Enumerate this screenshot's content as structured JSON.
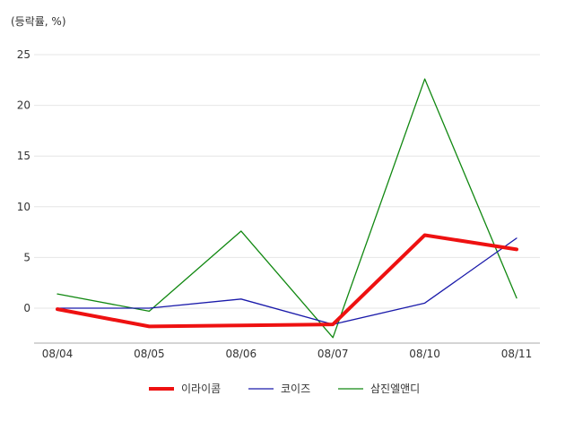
{
  "chart_data": {
    "type": "line",
    "ylabel": "(등락률, %)",
    "categories": [
      "08/04",
      "08/05",
      "08/06",
      "08/07",
      "08/10",
      "08/11"
    ],
    "yticks": [
      25,
      20,
      15,
      10,
      5,
      0
    ],
    "ylim": [
      -3.5,
      25
    ],
    "grid": true,
    "legend_position": "bottom",
    "series": [
      {
        "name": "이라이콤",
        "color": "#ee1111",
        "values": [
          -0.1,
          -1.8,
          -1.7,
          -1.6,
          7.2,
          5.8
        ]
      },
      {
        "name": "코이즈",
        "color": "#1a1aaa",
        "values": [
          0.0,
          0.0,
          0.9,
          -1.6,
          0.5,
          6.9
        ]
      },
      {
        "name": "삼진엘앤디",
        "color": "#118811",
        "values": [
          1.4,
          -0.3,
          7.6,
          -2.9,
          22.6,
          1.0
        ]
      }
    ]
  }
}
